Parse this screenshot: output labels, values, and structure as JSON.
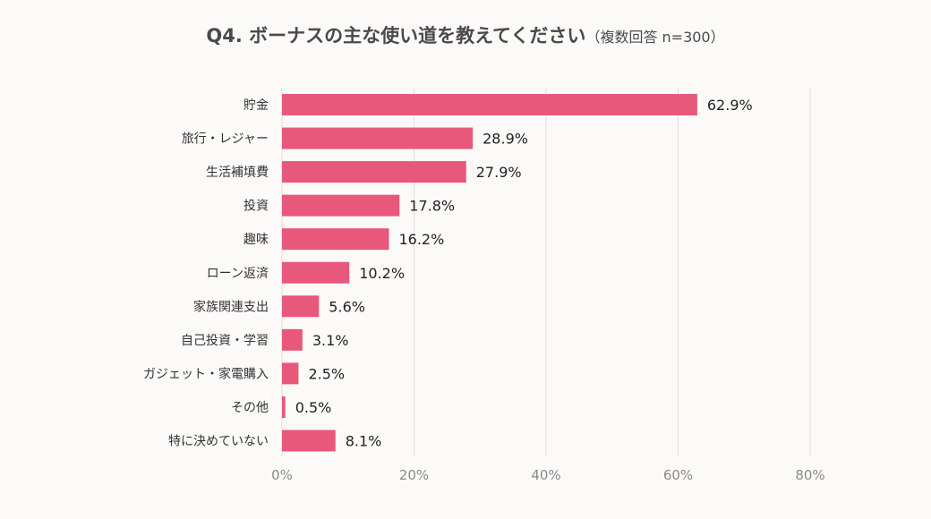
{
  "chart_data": {
    "type": "bar",
    "orientation": "horizontal",
    "title": "Q4. ボーナスの主な使い道を教えてください",
    "subtitle": "（複数回答 n=300）",
    "categories": [
      "貯金",
      "旅行・レジャー",
      "生活補填費",
      "投資",
      "趣味",
      "ローン返済",
      "家族関連支出",
      "自己投資・学習",
      "ガジェット・家電購入",
      "その他",
      "特に決めていない"
    ],
    "values": [
      62.9,
      28.9,
      27.9,
      17.8,
      16.2,
      10.2,
      5.6,
      3.1,
      2.5,
      0.5,
      8.1
    ],
    "value_labels": [
      "62.9%",
      "28.9%",
      "27.9%",
      "17.8%",
      "16.2%",
      "10.2%",
      "5.6%",
      "3.1%",
      "2.5%",
      "0.5%",
      "8.1%"
    ],
    "xticks": [
      0,
      20,
      40,
      60,
      80
    ],
    "xtick_labels": [
      "0%",
      "20%",
      "40%",
      "60%",
      "80%"
    ],
    "xlim": [
      0,
      80
    ],
    "grid": true,
    "legend": "none",
    "bar_color": "#e8587a",
    "grid_color": "#e2dcd8"
  }
}
